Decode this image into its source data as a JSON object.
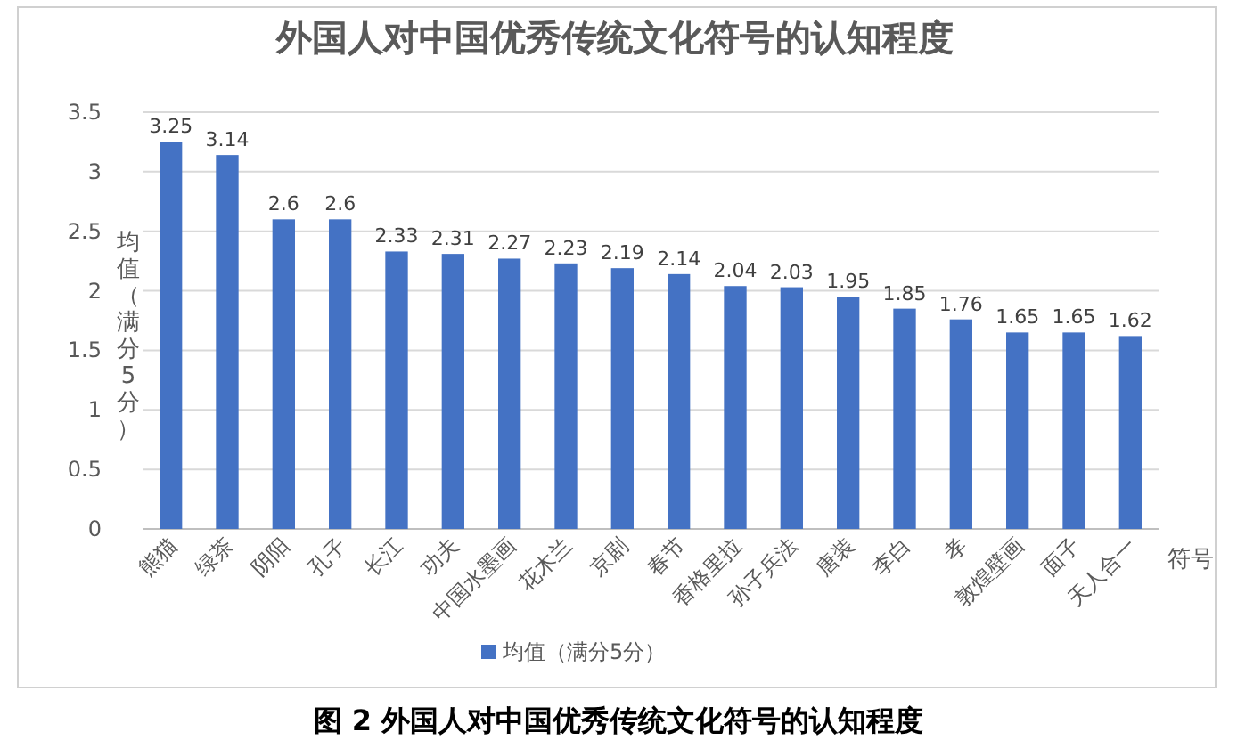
{
  "chart_data": {
    "type": "bar",
    "title": "外国人对中国优秀传统文化符号的认知程度",
    "xlabel": "符号",
    "ylabel": "均值（满分5分）",
    "categories": [
      "熊猫",
      "绿茶",
      "阴阳",
      "孔子",
      "长江",
      "功夫",
      "中国水墨画",
      "花木兰",
      "京剧",
      "春节",
      "香格里拉",
      "孙子兵法",
      "唐装",
      "李白",
      "孝",
      "敦煌壁画",
      "面子",
      "天人合一"
    ],
    "series": [
      {
        "name": "均值（满分5分）",
        "color": "#4472c4",
        "values": [
          3.25,
          3.14,
          2.6,
          2.6,
          2.33,
          2.31,
          2.27,
          2.23,
          2.19,
          2.14,
          2.04,
          2.03,
          1.95,
          1.85,
          1.76,
          1.65,
          1.65,
          1.62
        ]
      }
    ],
    "ylim": [
      0,
      3.5
    ],
    "yticks": [
      0,
      {
        "value": 0.5,
        "label": "0.5"
      },
      1,
      {
        "value": 1.5,
        "label": "1.5"
      },
      2,
      {
        "value": 2.5,
        "label": "2.5"
      },
      3,
      {
        "value": 3.5,
        "label": "3.5"
      }
    ],
    "grid": "y",
    "legend": "bottom",
    "data_labels": true,
    "annotations": [
      "图 2 外国人对中国优秀传统文化符号的认知程度"
    ]
  }
}
